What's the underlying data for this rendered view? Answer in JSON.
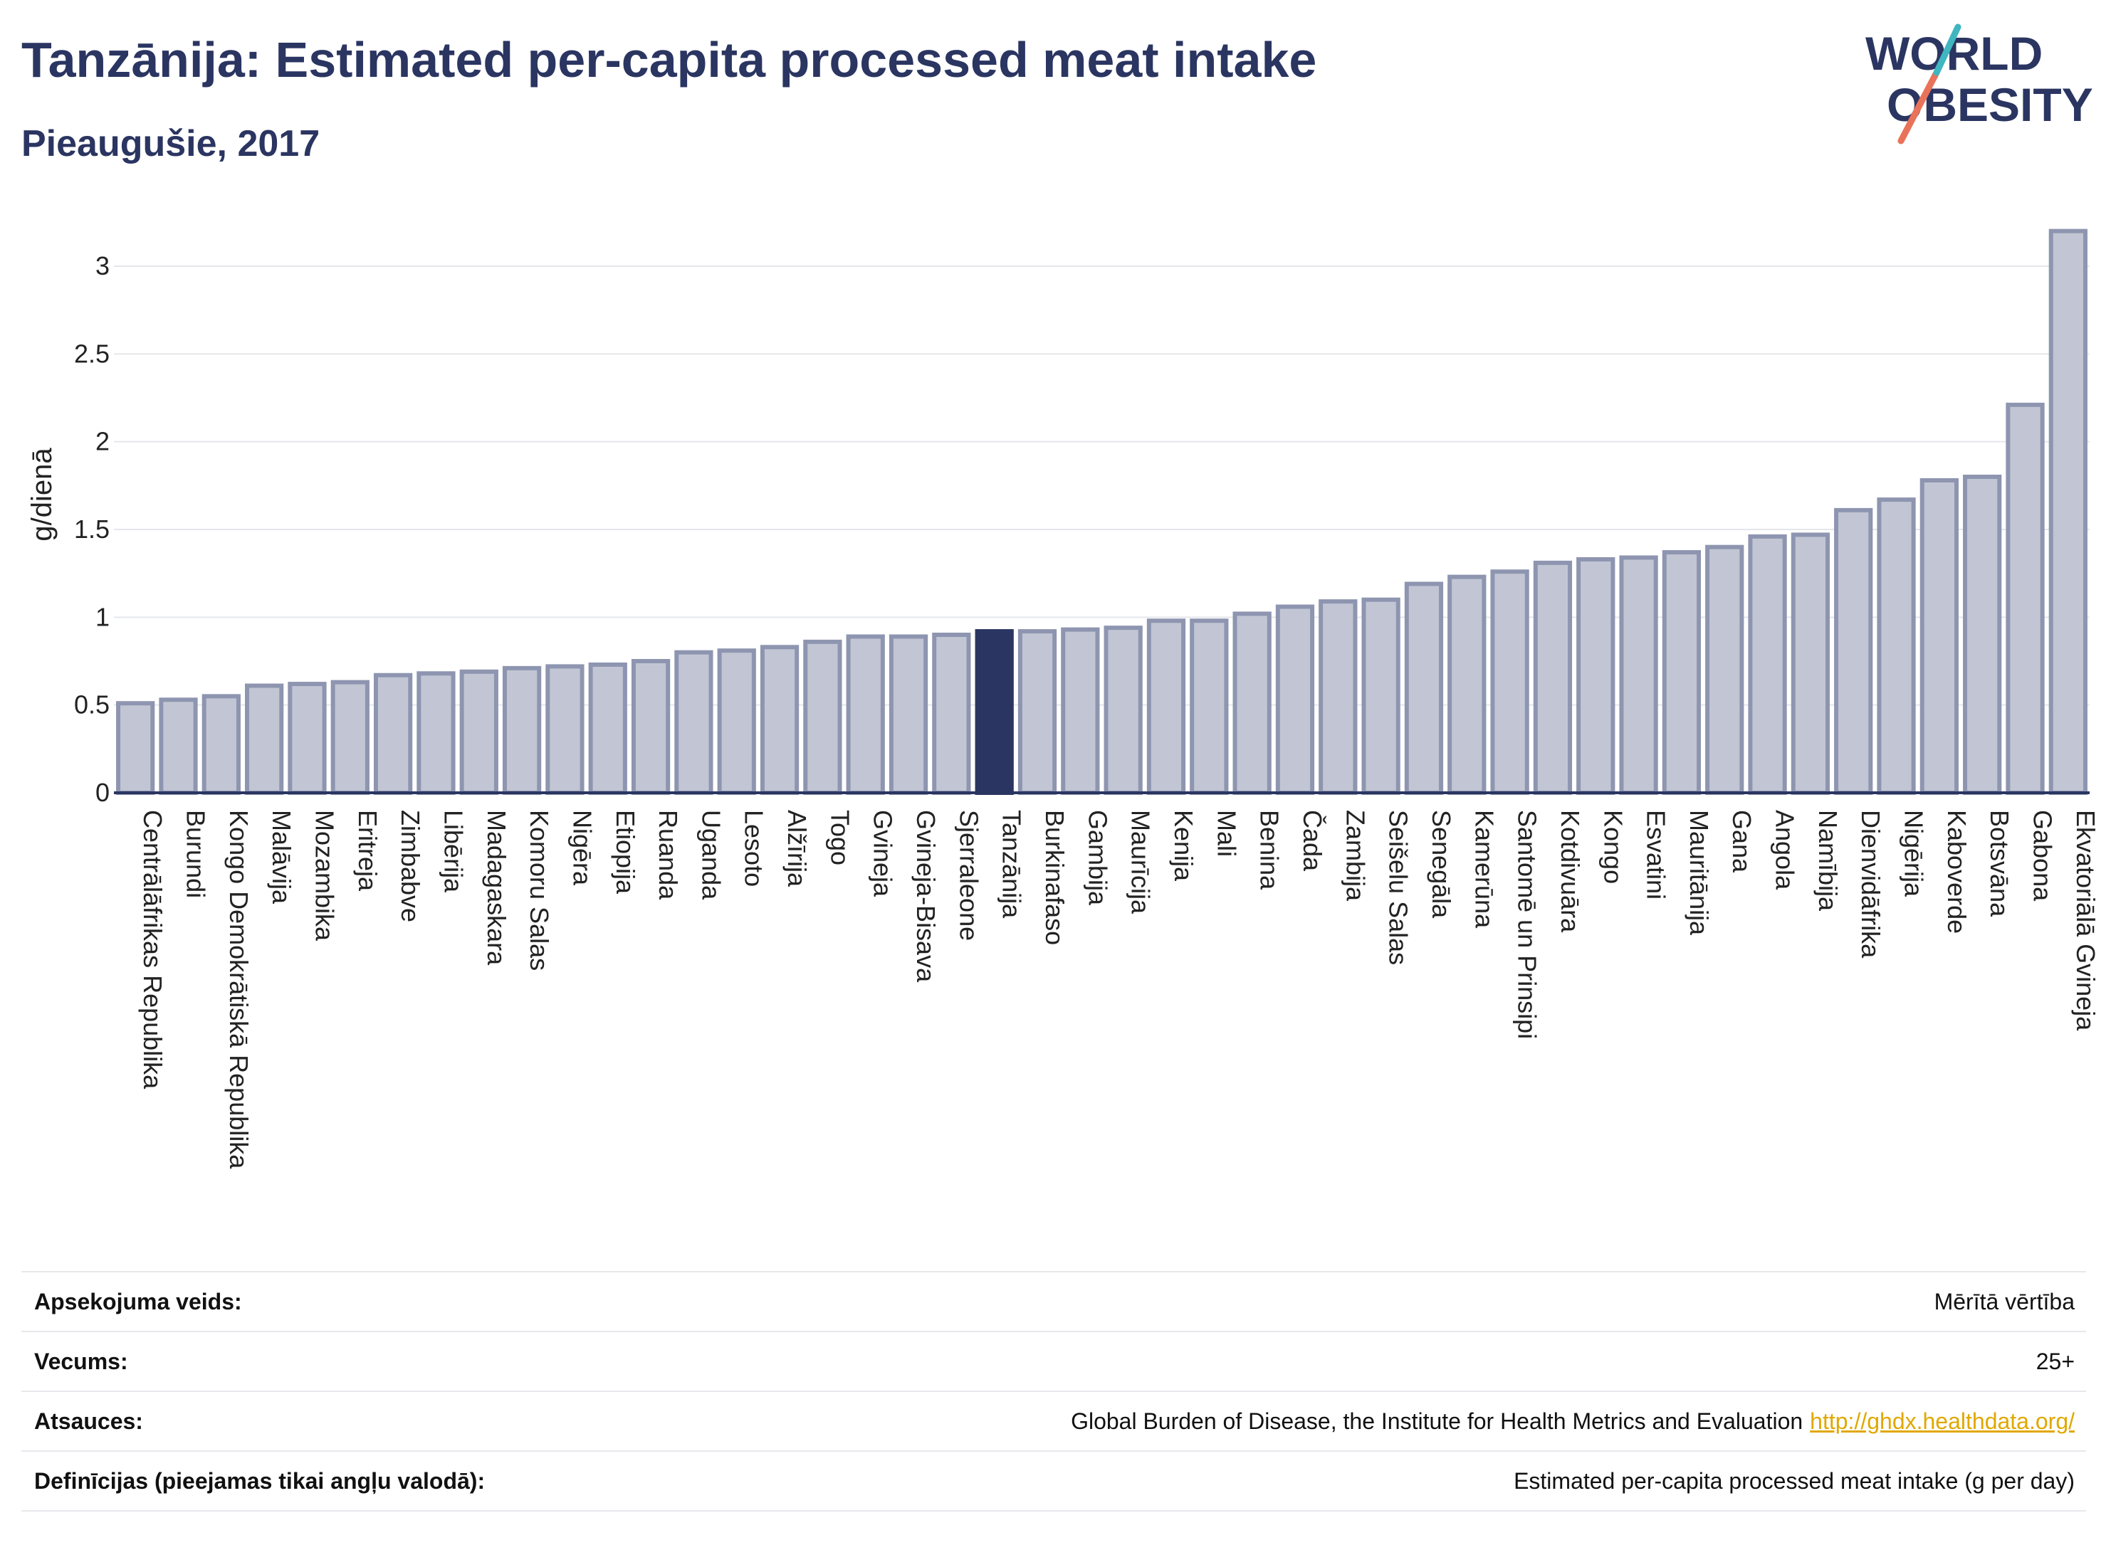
{
  "header": {
    "title": "Tanzānija: Estimated per-capita processed meat intake",
    "subtitle": "Pieaugušie, 2017"
  },
  "logo": {
    "line1": "WORLD",
    "line2": "OBESITY"
  },
  "colors": {
    "bar": "#c2c6d4",
    "bar_border": "#8e95b0",
    "highlight": "#2b3561",
    "title": "#2b3561",
    "link": "#e0a800"
  },
  "chart_data": {
    "type": "bar",
    "ylabel": "g/dienā",
    "ylim": [
      0,
      3.3
    ],
    "yticks": [
      0,
      0.5,
      1,
      1.5,
      2,
      2.5,
      3
    ],
    "ytick_labels": [
      "0",
      "0.5",
      "1",
      "1.5",
      "2",
      "2.5",
      "3"
    ],
    "highlight": "Tanzānija",
    "grid": true,
    "categories": [
      "Centrālāfrikas Republika",
      "Burundi",
      "Kongo Demokrātiskā Republika",
      "Malāvija",
      "Mozambika",
      "Eritreja",
      "Zimbabve",
      "Libērija",
      "Madagaskara",
      "Komoru Salas",
      "Nigēra",
      "Etiopija",
      "Ruanda",
      "Uganda",
      "Lesoto",
      "Alžīrija",
      "Togo",
      "Gvineja",
      "Gvineja-Bisava",
      "Sjerraleone",
      "Tanzānija",
      "Burkinafaso",
      "Gambija",
      "Maurīcija",
      "Kenija",
      "Mali",
      "Benina",
      "Čada",
      "Zambija",
      "Seišelu Salas",
      "Senegāla",
      "Kamerūna",
      "Santomē un Prinsipi",
      "Kotdivuāra",
      "Kongo",
      "Esvatini",
      "Mauritānija",
      "Gana",
      "Angola",
      "Namībija",
      "Dienvidāfrika",
      "Nigērija",
      "Kaboverde",
      "Botsvāna",
      "Gabona",
      "Ekvatoriālā Gvineja"
    ],
    "values": [
      0.51,
      0.53,
      0.55,
      0.61,
      0.62,
      0.63,
      0.67,
      0.68,
      0.69,
      0.71,
      0.72,
      0.73,
      0.75,
      0.8,
      0.81,
      0.83,
      0.86,
      0.89,
      0.89,
      0.9,
      0.92,
      0.92,
      0.93,
      0.94,
      0.98,
      0.98,
      1.02,
      1.06,
      1.09,
      1.1,
      1.19,
      1.23,
      1.26,
      1.31,
      1.33,
      1.34,
      1.37,
      1.4,
      1.46,
      1.47,
      1.61,
      1.67,
      1.78,
      1.8,
      2.21,
      3.2
    ]
  },
  "meta": {
    "rows": [
      {
        "key": "Apsekojuma veids:",
        "value": "Mērītā vērtība"
      },
      {
        "key": "Vecums:",
        "value": "25+"
      },
      {
        "key": "Atsauces:",
        "value": "Global Burden of Disease, the Institute for Health Metrics and Evaluation",
        "link": "http://ghdx.healthdata.org/"
      },
      {
        "key": "Definīcijas (pieejamas tikai angļu valodā):",
        "value": "Estimated per-capita processed meat intake (g per day)"
      }
    ]
  }
}
